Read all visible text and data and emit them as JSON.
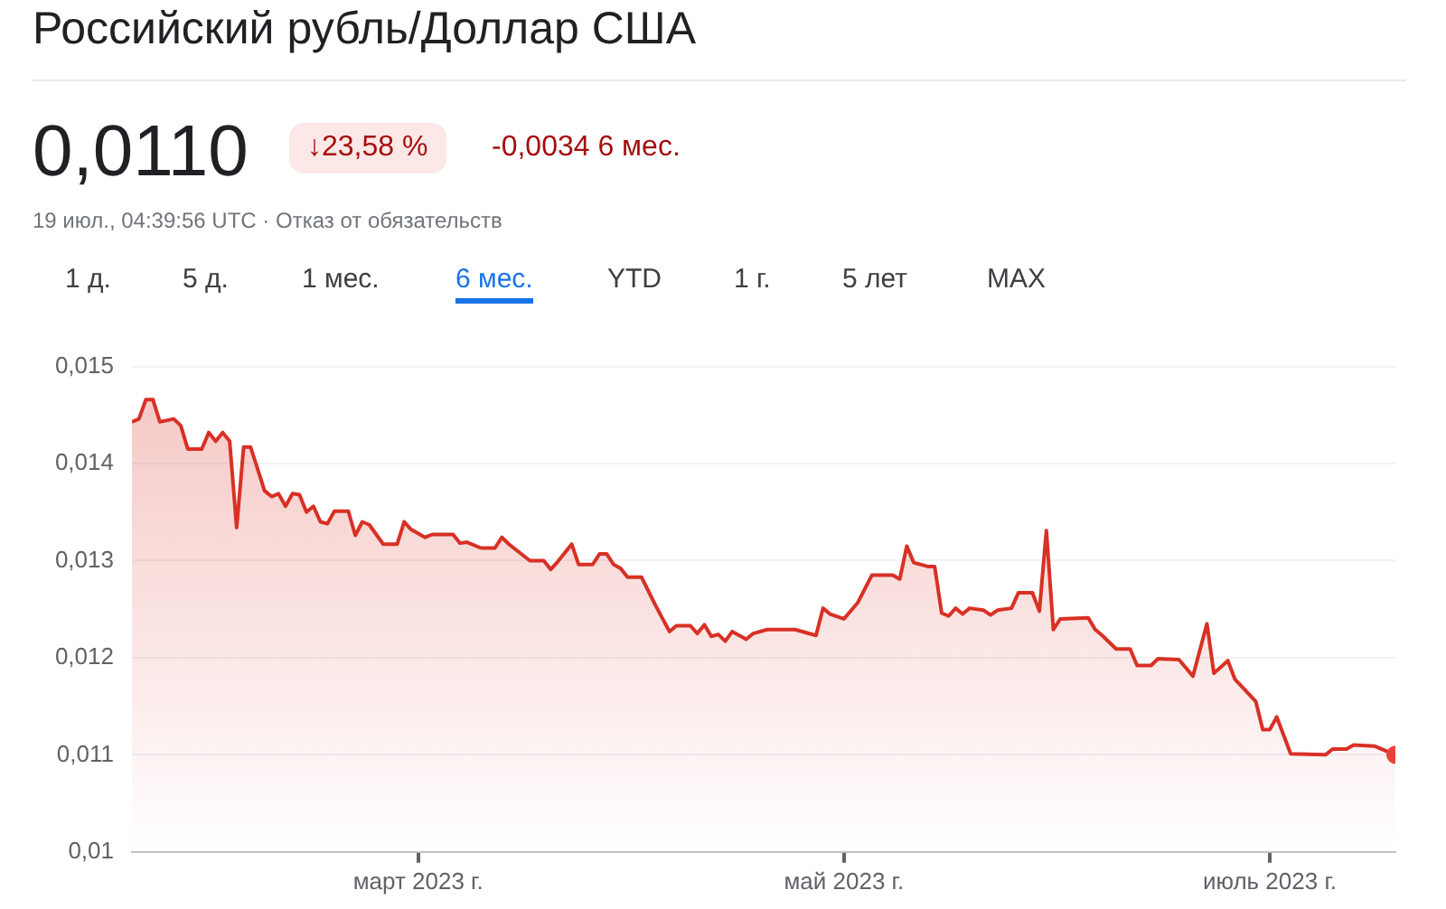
{
  "chart_data": {
    "type": "area",
    "title": "Российский рубль/Доллар США",
    "annotations": [
      "0,0110",
      "↓23,58 %",
      "-0,0034 6 мес.",
      "19 июл., 04:39:56 UTC · Отказ от обязательств",
      "1 д.",
      "5 д.",
      "1 мес.",
      "6 мес.",
      "YTD",
      "1 г.",
      "5 лет",
      "MAX"
    ],
    "x": [
      "2023-01-19",
      "2023-01-20",
      "2023-01-21",
      "2023-01-22",
      "2023-01-23",
      "2023-01-25",
      "2023-01-26",
      "2023-01-27",
      "2023-01-29",
      "2023-01-30",
      "2023-01-31",
      "2023-02-01",
      "2023-02-02",
      "2023-02-03",
      "2023-02-04",
      "2023-02-05",
      "2023-02-07",
      "2023-02-08",
      "2023-02-09",
      "2023-02-10",
      "2023-02-11",
      "2023-02-12",
      "2023-02-13",
      "2023-02-14",
      "2023-02-15",
      "2023-02-16",
      "2023-02-17",
      "2023-02-19",
      "2023-02-20",
      "2023-02-21",
      "2023-02-22",
      "2023-02-24",
      "2023-02-26",
      "2023-02-27",
      "2023-02-28",
      "2023-03-02",
      "2023-03-03",
      "2023-03-06",
      "2023-03-07",
      "2023-03-08",
      "2023-03-10",
      "2023-03-12",
      "2023-03-13",
      "2023-03-14",
      "2023-03-17",
      "2023-03-19",
      "2023-03-20",
      "2023-03-21",
      "2023-03-23",
      "2023-03-24",
      "2023-03-26",
      "2023-03-27",
      "2023-03-28",
      "2023-03-29",
      "2023-03-30",
      "2023-03-31",
      "2023-04-02",
      "2023-04-04",
      "2023-04-06",
      "2023-04-07",
      "2023-04-09",
      "2023-04-10",
      "2023-04-11",
      "2023-04-12",
      "2023-04-13",
      "2023-04-14",
      "2023-04-15",
      "2023-04-17",
      "2023-04-18",
      "2023-04-20",
      "2023-04-24",
      "2023-04-27",
      "2023-04-28",
      "2023-04-29",
      "2023-05-01",
      "2023-05-03",
      "2023-05-05",
      "2023-05-08",
      "2023-05-09",
      "2023-05-10",
      "2023-05-11",
      "2023-05-13",
      "2023-05-14",
      "2023-05-15",
      "2023-05-16",
      "2023-05-17",
      "2023-05-18",
      "2023-05-19",
      "2023-05-21",
      "2023-05-22",
      "2023-05-23",
      "2023-05-25",
      "2023-05-26",
      "2023-05-28",
      "2023-05-29",
      "2023-05-30",
      "2023-05-31",
      "2023-06-01",
      "2023-06-05",
      "2023-06-06",
      "2023-06-07",
      "2023-06-09",
      "2023-06-11",
      "2023-06-12",
      "2023-06-14",
      "2023-06-15",
      "2023-06-18",
      "2023-06-20",
      "2023-06-22",
      "2023-06-23",
      "2023-06-25",
      "2023-06-26",
      "2023-06-29",
      "2023-06-30",
      "2023-07-01",
      "2023-07-02",
      "2023-07-04",
      "2023-07-09",
      "2023-07-10",
      "2023-07-12",
      "2023-07-13",
      "2023-07-16",
      "2023-07-19"
    ],
    "series": [
      {
        "color": "#d93025",
        "values": [
          0.01443,
          0.01446,
          0.01466,
          0.01466,
          0.01443,
          0.01446,
          0.01439,
          0.01415,
          0.01415,
          0.01432,
          0.01423,
          0.01432,
          0.01423,
          0.01334,
          0.01417,
          0.01417,
          0.01372,
          0.01366,
          0.01369,
          0.01356,
          0.01369,
          0.01368,
          0.0135,
          0.01356,
          0.0134,
          0.01338,
          0.01351,
          0.01351,
          0.01326,
          0.0134,
          0.01337,
          0.01317,
          0.01317,
          0.0134,
          0.01332,
          0.01324,
          0.01327,
          0.01327,
          0.01318,
          0.01319,
          0.01313,
          0.01313,
          0.01324,
          0.01317,
          0.013,
          0.013,
          0.01291,
          0.01299,
          0.01317,
          0.01296,
          0.01296,
          0.01307,
          0.01307,
          0.01296,
          0.01292,
          0.01283,
          0.01283,
          0.01254,
          0.01227,
          0.01233,
          0.01233,
          0.01225,
          0.01234,
          0.01222,
          0.01224,
          0.01217,
          0.01227,
          0.01219,
          0.01225,
          0.01229,
          0.01229,
          0.01223,
          0.01251,
          0.01245,
          0.0124,
          0.01257,
          0.01285,
          0.01285,
          0.01281,
          0.01315,
          0.01298,
          0.01294,
          0.01294,
          0.01246,
          0.01243,
          0.01251,
          0.01245,
          0.01251,
          0.01249,
          0.01244,
          0.01249,
          0.01251,
          0.01267,
          0.01267,
          0.01248,
          0.01331,
          0.01229,
          0.0124,
          0.01241,
          0.01229,
          0.01223,
          0.01209,
          0.01209,
          0.01192,
          0.01192,
          0.01199,
          0.01198,
          0.01181,
          0.01235,
          0.01184,
          0.01197,
          0.01178,
          0.01155,
          0.01126,
          0.01126,
          0.01139,
          0.01101,
          0.011,
          0.01106,
          0.01106,
          0.0111,
          0.01109,
          0.011
        ]
      }
    ],
    "xlim": [
      "2023-01-19",
      "2023-07-19"
    ],
    "xticks": [
      {
        "value": "2023-03-01",
        "label": "март 2023 г."
      },
      {
        "value": "2023-05-01",
        "label": "май 2023 г."
      },
      {
        "value": "2023-07-01",
        "label": "июль 2023 г."
      }
    ],
    "ylim": [
      0.01,
      0.015
    ],
    "yticks": [
      {
        "value": 0.01,
        "label": "0,01"
      },
      {
        "value": 0.011,
        "label": "0,011"
      },
      {
        "value": 0.012,
        "label": "0,012"
      },
      {
        "value": 0.013,
        "label": "0,013"
      },
      {
        "value": 0.014,
        "label": "0,014"
      },
      {
        "value": 0.015,
        "label": "0,015"
      }
    ],
    "grid": "y",
    "legend": false
  }
}
